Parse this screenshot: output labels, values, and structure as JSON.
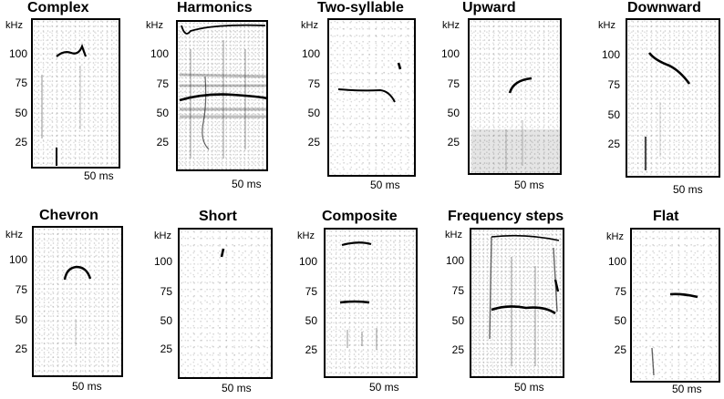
{
  "y_unit": "kHz",
  "y_ticks": [
    "100",
    "75",
    "50",
    "25"
  ],
  "time_scale": "50 ms",
  "panels": [
    {
      "title": "Complex"
    },
    {
      "title": "Harmonics"
    },
    {
      "title": "Two-syllable"
    },
    {
      "title": "Upward"
    },
    {
      "title": "Downward"
    },
    {
      "title": "Chevron"
    },
    {
      "title": "Short"
    },
    {
      "title": "Composite"
    },
    {
      "title": "Frequency steps"
    },
    {
      "title": "Flat"
    }
  ]
}
